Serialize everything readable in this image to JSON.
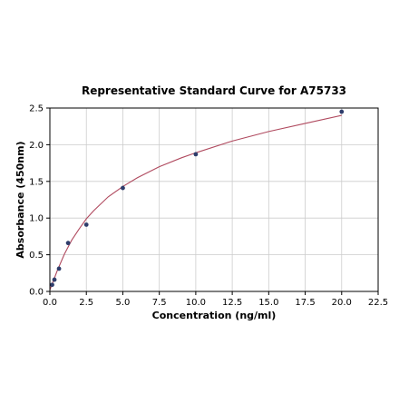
{
  "chart_data": {
    "type": "scatter",
    "title": "Representative Standard Curve for A75733",
    "xlabel": "Concentration (ng/ml)",
    "ylabel": "Absorbance (450nm)",
    "xlim": [
      0,
      22.5
    ],
    "ylim": [
      0,
      2.5
    ],
    "x_ticks": [
      "0.0",
      "2.5",
      "5.0",
      "7.5",
      "10.0",
      "12.5",
      "15.0",
      "17.5",
      "20.0",
      "22.5"
    ],
    "y_ticks": [
      "0.0",
      "0.5",
      "1.0",
      "1.5",
      "2.0",
      "2.5"
    ],
    "grid": true,
    "series": [
      {
        "type": "scatter",
        "x": [
          0.156,
          0.312,
          0.625,
          1.25,
          2.5,
          5.0,
          10.0,
          20.0
        ],
        "y": [
          0.09,
          0.16,
          0.31,
          0.66,
          0.91,
          1.41,
          1.87,
          2.45
        ]
      },
      {
        "type": "line",
        "fit": "four-parameter logistic",
        "x": [
          0,
          0.25,
          0.5,
          1,
          1.5,
          2,
          2.5,
          3,
          4,
          5,
          6,
          7.5,
          9,
          10,
          12.5,
          15,
          17.5,
          20
        ],
        "y": [
          0.02,
          0.15,
          0.28,
          0.51,
          0.7,
          0.85,
          0.99,
          1.1,
          1.29,
          1.43,
          1.55,
          1.7,
          1.82,
          1.89,
          2.05,
          2.18,
          2.29,
          2.4
        ]
      }
    ],
    "colors": {
      "points": "#2e3d6b",
      "curve": "#b04a5f",
      "grid": "#cccccc",
      "axis": "#000000"
    }
  }
}
